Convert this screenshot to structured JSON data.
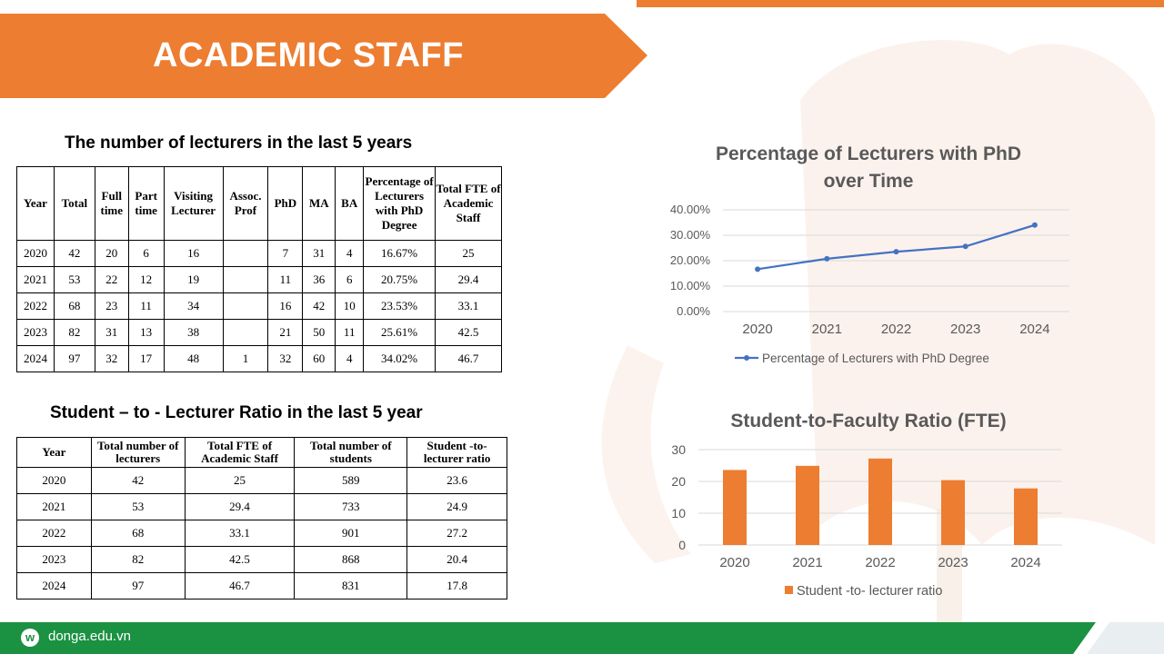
{
  "slide": {
    "title": "ACADEMIC STAFF",
    "footer_site": "donga.edu.vn",
    "logo_letter": "w",
    "accent_color": "#ED7D31",
    "footer_color": "#1B9142"
  },
  "table1": {
    "title": "The number of lecturers in the last 5 years",
    "headers": [
      "Year",
      "Total",
      "Full time",
      "Part time",
      "Visiting Lecturer",
      "Assoc. Prof",
      "PhD",
      "MA",
      "BA",
      "Percentage of Lecturers with PhD Degree",
      "Total FTE of Academic Staff"
    ],
    "rows": [
      [
        "2020",
        "42",
        "20",
        "6",
        "16",
        "",
        "7",
        "31",
        "4",
        "16.67%",
        "25"
      ],
      [
        "2021",
        "53",
        "22",
        "12",
        "19",
        "",
        "11",
        "36",
        "6",
        "20.75%",
        "29.4"
      ],
      [
        "2022",
        "68",
        "23",
        "11",
        "34",
        "",
        "16",
        "42",
        "10",
        "23.53%",
        "33.1"
      ],
      [
        "2023",
        "82",
        "31",
        "13",
        "38",
        "",
        "21",
        "50",
        "11",
        "25.61%",
        "42.5"
      ],
      [
        "2024",
        "97",
        "32",
        "17",
        "48",
        "1",
        "32",
        "60",
        "4",
        "34.02%",
        "46.7"
      ]
    ]
  },
  "table2": {
    "title": "Student – to - Lecturer Ratio in the last 5 year",
    "headers": [
      "Year",
      "Total number of lecturers",
      "Total FTE of Academic Staff",
      "Total number of students",
      "Student -to- lecturer ratio"
    ],
    "rows": [
      [
        "2020",
        "42",
        "25",
        "589",
        "23.6"
      ],
      [
        "2021",
        "53",
        "29.4",
        "733",
        "24.9"
      ],
      [
        "2022",
        "68",
        "33.1",
        "901",
        "27.2"
      ],
      [
        "2023",
        "82",
        "42.5",
        "868",
        "20.4"
      ],
      [
        "2024",
        "97",
        "46.7",
        "831",
        "17.8"
      ]
    ]
  },
  "chart_data": [
    {
      "type": "line",
      "title": "Percentage of Lecturers with PhD over Time",
      "categories": [
        "2020",
        "2021",
        "2022",
        "2023",
        "2024"
      ],
      "series": [
        {
          "name": "Percentage of Lecturers with PhD Degree",
          "values": [
            16.67,
            20.75,
            23.53,
            25.61,
            34.02
          ],
          "color": "#4472C4"
        }
      ],
      "y_tick_labels": [
        "0.00%",
        "10.00%",
        "20.00%",
        "30.00%",
        "40.00%"
      ],
      "ylim": [
        0,
        40
      ],
      "grid": true,
      "legend": "bottom"
    },
    {
      "type": "bar",
      "title": "Student-to-Faculty Ratio (FTE)",
      "categories": [
        "2020",
        "2021",
        "2022",
        "2023",
        "2024"
      ],
      "series": [
        {
          "name": "Student -to- lecturer ratio",
          "values": [
            23.6,
            24.9,
            27.2,
            20.4,
            17.8
          ],
          "color": "#ED7D31"
        }
      ],
      "y_tick_labels": [
        "0",
        "10",
        "20",
        "30"
      ],
      "ylim": [
        0,
        30
      ],
      "grid": true,
      "legend": "bottom"
    }
  ]
}
